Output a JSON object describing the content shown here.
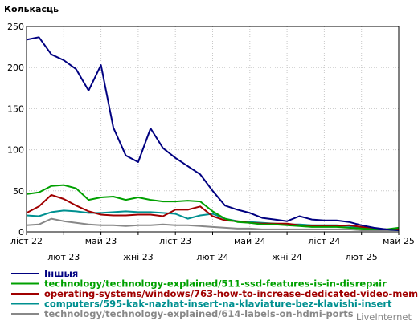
{
  "chart_data": {
    "type": "line",
    "ylabel": "Колькасць",
    "ylim": [
      0,
      250
    ],
    "yticks": [
      0,
      50,
      100,
      150,
      200,
      250
    ],
    "grid": true,
    "legend_position": "bottom",
    "x_tick_labels": [
      {
        "label": "ліст 22",
        "index": 0
      },
      {
        "label": "лют 23",
        "index": 3
      },
      {
        "label": "май 23",
        "index": 6
      },
      {
        "label": "жні 23",
        "index": 9
      },
      {
        "label": "ліст 23",
        "index": 12
      },
      {
        "label": "лют 24",
        "index": 15
      },
      {
        "label": "май 24",
        "index": 18
      },
      {
        "label": "жні 24",
        "index": 21
      },
      {
        "label": "ліст 24",
        "index": 24
      },
      {
        "label": "лют 25",
        "index": 27
      },
      {
        "label": "май 25",
        "index": 30
      }
    ],
    "series": [
      {
        "name": "Іншыя",
        "color": "#000080",
        "values": [
          234,
          237,
          216,
          209,
          198,
          172,
          203,
          127,
          93,
          85,
          126,
          102,
          90,
          80,
          70,
          50,
          32,
          27,
          23,
          17,
          15,
          13,
          19,
          15,
          14,
          14,
          12,
          8,
          5,
          3,
          2
        ]
      },
      {
        "name": "technology/technology-explained/511-ssd-features-is-in-disrepair",
        "color": "#00a000",
        "values": [
          46,
          48,
          56,
          57,
          53,
          39,
          42,
          43,
          39,
          42,
          39,
          37,
          37,
          38,
          37,
          25,
          16,
          12,
          11,
          9,
          9,
          8,
          7,
          6,
          6,
          6,
          5,
          4,
          3,
          3,
          5
        ]
      },
      {
        "name": "operating-systems/windows/763-how-to-increase-dedicated-video-memo",
        "color": "#a00000",
        "values": [
          23,
          31,
          45,
          40,
          32,
          25,
          21,
          20,
          20,
          21,
          21,
          19,
          27,
          27,
          31,
          19,
          14,
          13,
          11,
          10,
          10,
          10,
          8,
          7,
          7,
          7,
          8,
          6,
          4,
          3,
          3
        ]
      },
      {
        "name": "computers/595-kak-nazhat-insert-na-klaviature-bez-klavishi-insert",
        "color": "#009090",
        "values": [
          20,
          19,
          24,
          26,
          25,
          23,
          23,
          24,
          25,
          24,
          24,
          23,
          22,
          16,
          20,
          22,
          16,
          13,
          12,
          11,
          10,
          9,
          9,
          8,
          8,
          8,
          7,
          5,
          4,
          3,
          2
        ]
      },
      {
        "name": "technology/technology-explained/614-labels-on-hdmi-ports",
        "color": "#888888",
        "values": [
          8,
          9,
          16,
          13,
          11,
          9,
          8,
          8,
          7,
          8,
          8,
          9,
          8,
          8,
          7,
          6,
          5,
          4,
          4,
          3,
          3,
          3,
          3,
          3,
          3,
          3,
          3,
          2,
          2,
          2,
          2
        ]
      }
    ]
  },
  "credit": "LiveInternet"
}
